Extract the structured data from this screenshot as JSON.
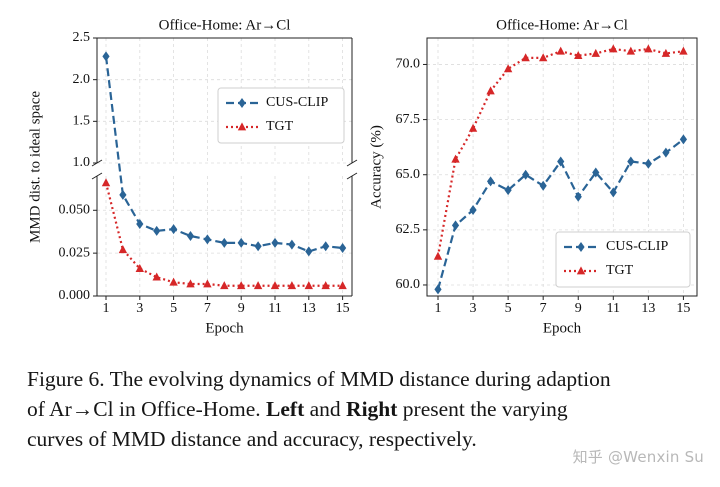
{
  "chart_data": [
    {
      "type": "line",
      "title": "Office-Home: Ar→Cl",
      "xlabel": "Epoch",
      "ylabel": "MMD dist. to ideal space",
      "x": [
        1,
        2,
        3,
        4,
        5,
        6,
        7,
        8,
        9,
        10,
        11,
        12,
        13,
        14,
        15
      ],
      "xticks": [
        1,
        3,
        5,
        7,
        9,
        11,
        13,
        15
      ],
      "broken_axis": true,
      "upper_ylim": [
        1.0,
        2.5
      ],
      "upper_yticks": [
        1.0,
        1.5,
        2.0,
        2.5
      ],
      "upper_yticklabels": [
        "1.0",
        "1.5",
        "2.0",
        "2.5"
      ],
      "lower_ylim": [
        0.0,
        0.07
      ],
      "lower_yticks": [
        0.0,
        0.025,
        0.05
      ],
      "lower_yticklabels": [
        "0.000",
        "0.025",
        "0.050"
      ],
      "grid": true,
      "legend_position": "upper-right",
      "series": [
        {
          "name": "CUS-CLIP",
          "color": "#2a6496",
          "style": "dashed",
          "marker": "diamond",
          "values": [
            2.28,
            0.059,
            0.042,
            0.038,
            0.039,
            0.035,
            0.033,
            0.031,
            0.031,
            0.029,
            0.031,
            0.03,
            0.026,
            0.029,
            0.028
          ]
        },
        {
          "name": "TGT",
          "color": "#d62728",
          "style": "dotted",
          "marker": "triangle",
          "values": [
            0.066,
            0.027,
            0.016,
            0.011,
            0.008,
            0.007,
            0.007,
            0.006,
            0.006,
            0.006,
            0.006,
            0.006,
            0.006,
            0.006,
            0.006
          ]
        }
      ]
    },
    {
      "type": "line",
      "title": "Office-Home: Ar→Cl",
      "xlabel": "Epoch",
      "ylabel": "Accuracy (%)",
      "x": [
        1,
        2,
        3,
        4,
        5,
        6,
        7,
        8,
        9,
        10,
        11,
        12,
        13,
        14,
        15
      ],
      "xticks": [
        1,
        3,
        5,
        7,
        9,
        11,
        13,
        15
      ],
      "ylim": [
        59.5,
        71.2
      ],
      "yticks": [
        60.0,
        62.5,
        65.0,
        67.5,
        70.0
      ],
      "yticklabels": [
        "60.0",
        "62.5",
        "65.0",
        "67.5",
        "70.0"
      ],
      "grid": true,
      "legend_position": "lower-right",
      "series": [
        {
          "name": "CUS-CLIP",
          "color": "#2a6496",
          "style": "dashed",
          "marker": "diamond",
          "values": [
            59.8,
            62.7,
            63.4,
            64.7,
            64.3,
            65.0,
            64.5,
            65.6,
            64.0,
            65.1,
            64.2,
            65.6,
            65.5,
            66.0,
            66.6
          ]
        },
        {
          "name": "TGT",
          "color": "#d62728",
          "style": "dotted",
          "marker": "triangle",
          "values": [
            61.3,
            65.7,
            67.1,
            68.8,
            69.8,
            70.3,
            70.3,
            70.6,
            70.4,
            70.5,
            70.7,
            70.6,
            70.7,
            70.5,
            70.6
          ]
        }
      ]
    }
  ],
  "caption": {
    "line1": "Figure 6. The evolving dynamics of MMD distance during adaption",
    "line2_a": "of Ar→Cl in Office-Home.",
    "line2_b": "Left",
    "line2_c": "and",
    "line2_d": "Right",
    "line2_e": "present the varying",
    "line3": "curves of MMD distance and accuracy, respectively."
  },
  "watermark": "知乎 @Wenxin Su"
}
